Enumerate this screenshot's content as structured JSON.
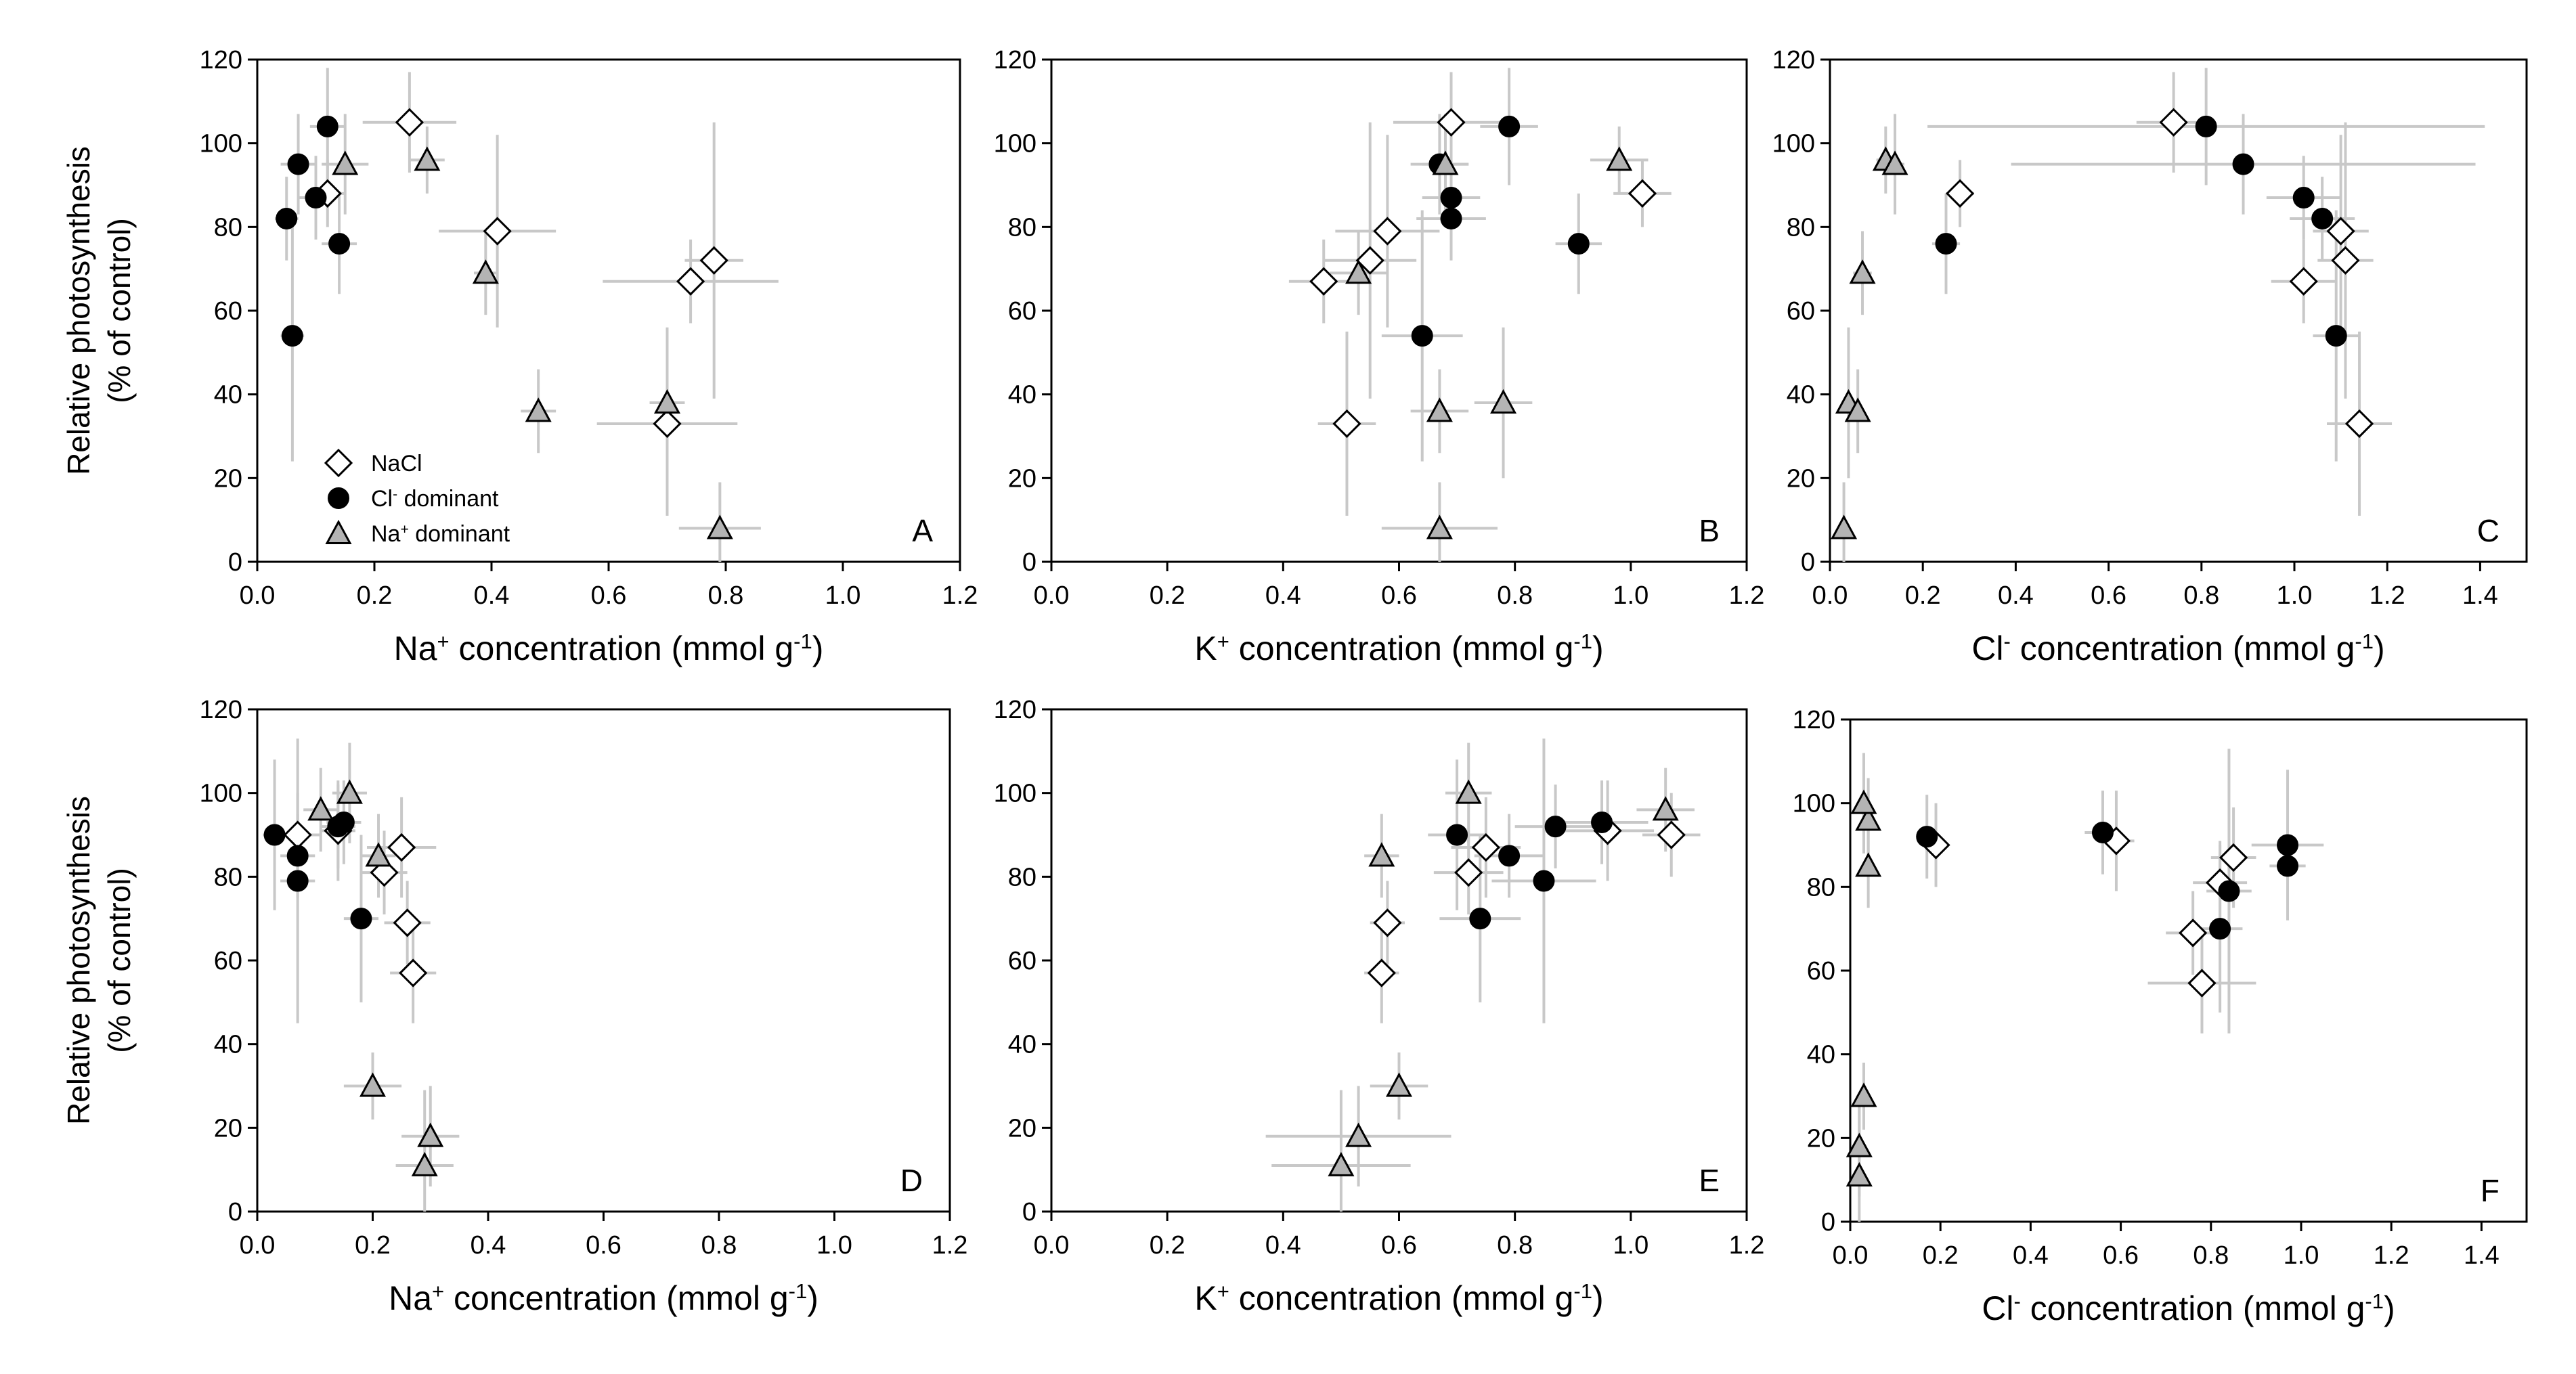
{
  "figure": {
    "ylabel_line1": "Relative photosynthesis",
    "ylabel_line2": "(% of control)",
    "legend": [
      {
        "name": "NaCl",
        "marker": "diamond",
        "fill": "#ffffff"
      },
      {
        "name": "Cl",
        "sup": "-",
        "suffix": " dominant",
        "marker": "circle",
        "fill": "#000000"
      },
      {
        "name": "Na",
        "sup": "+",
        "suffix": " dominant",
        "marker": "triangle",
        "fill": "#b4b4b4"
      }
    ],
    "errorbar_color": "#c8c8c8",
    "sets": {
      "NaCl": {
        "NaK": [
          {
            "x": 0.26,
            "y": 105,
            "ex": 0.08,
            "ey": 12,
            "k": 0.69,
            "ek": 0.1,
            "cl": 0.74,
            "ecl": 0.08
          },
          {
            "x": 0.12,
            "y": 88,
            "ex": 0.03,
            "ey": 8,
            "k": 1.02,
            "ek": 0.05,
            "cl": 0.28,
            "ecl": 0.03
          },
          {
            "x": 0.41,
            "y": 79,
            "ex": 0.1,
            "ey": 23,
            "k": 0.58,
            "ek": 0.09,
            "cl": 1.1,
            "ecl": 0.06
          },
          {
            "x": 0.78,
            "y": 72,
            "ex": 0.05,
            "ey": 33,
            "k": 0.55,
            "ek": 0.08,
            "cl": 1.11,
            "ecl": 0.06
          },
          {
            "x": 0.74,
            "y": 67,
            "ex": 0.15,
            "ey": 10,
            "k": 0.47,
            "ek": 0.06,
            "cl": 1.02,
            "ecl": 0.07
          },
          {
            "x": 0.7,
            "y": 33,
            "ex": 0.12,
            "ey": 22,
            "k": 0.51,
            "ek": 0.05,
            "cl": 1.14,
            "ecl": 0.07
          }
        ],
        "DEF": [
          {
            "x": 0.07,
            "y": 90,
            "ex": 0.04,
            "ey": 10,
            "k": 1.07,
            "ek": 0.05,
            "cl": 0.19,
            "ecl": 0.02
          },
          {
            "x": 0.14,
            "y": 91,
            "ex": 0.03,
            "ey": 12,
            "k": 0.96,
            "ek": 0.08,
            "cl": 0.59,
            "ecl": 0.04
          },
          {
            "x": 0.25,
            "y": 87,
            "ex": 0.06,
            "ey": 12,
            "k": 0.75,
            "ek": 0.06,
            "cl": 0.85,
            "ecl": 0.05
          },
          {
            "x": 0.22,
            "y": 81,
            "ex": 0.04,
            "ey": 10,
            "k": 0.72,
            "ek": 0.06,
            "cl": 0.82,
            "ecl": 0.06
          },
          {
            "x": 0.26,
            "y": 69,
            "ex": 0.04,
            "ey": 10,
            "k": 0.58,
            "ek": 0.03,
            "cl": 0.76,
            "ecl": 0.06
          },
          {
            "x": 0.27,
            "y": 57,
            "ex": 0.04,
            "ey": 12,
            "k": 0.57,
            "ek": 0.03,
            "cl": 0.78,
            "ecl": 0.12
          }
        ]
      },
      "Cl_dominant": {
        "NaK": [
          {
            "x": 0.12,
            "y": 104,
            "ex": 0.03,
            "ey": 14,
            "k": 0.79,
            "ek": 0.05,
            "cl": 0.81,
            "ecl": 0.6
          },
          {
            "x": 0.07,
            "y": 95,
            "ex": 0.03,
            "ey": 12,
            "k": 0.67,
            "ek": 0.05,
            "cl": 0.89,
            "ecl": 0.5
          },
          {
            "x": 0.1,
            "y": 87,
            "ex": 0.03,
            "ey": 10,
            "k": 0.69,
            "ek": 0.05,
            "cl": 1.02,
            "ecl": 0.08
          },
          {
            "x": 0.05,
            "y": 82,
            "ex": 0.02,
            "ey": 10,
            "k": 0.69,
            "ek": 0.06,
            "cl": 1.06,
            "ecl": 0.07
          },
          {
            "x": 0.14,
            "y": 76,
            "ex": 0.03,
            "ey": 12,
            "k": 0.91,
            "ek": 0.04,
            "cl": 0.25,
            "ecl": 0.03
          },
          {
            "x": 0.06,
            "y": 54,
            "ex": 0.02,
            "ey": 30,
            "k": 0.64,
            "ek": 0.07,
            "cl": 1.09,
            "ecl": 0.05
          }
        ],
        "DEF": [
          {
            "x": 0.03,
            "y": 90,
            "ex": 0.02,
            "ey": 18,
            "k": 0.7,
            "ek": 0.05,
            "cl": 0.97,
            "ecl": 0.08
          },
          {
            "x": 0.07,
            "y": 85,
            "ex": 0.03,
            "ey": 10,
            "k": 0.79,
            "ek": 0.06,
            "cl": 0.97,
            "ecl": 0.04
          },
          {
            "x": 0.07,
            "y": 79,
            "ex": 0.03,
            "ey": 34,
            "k": 0.85,
            "ek": 0.09,
            "cl": 0.84,
            "ecl": 0.05
          },
          {
            "x": 0.14,
            "y": 92,
            "ex": 0.03,
            "ey": 10,
            "k": 0.87,
            "ek": 0.07,
            "cl": 0.17,
            "ecl": 0.02
          },
          {
            "x": 0.15,
            "y": 93,
            "ex": 0.03,
            "ey": 10,
            "k": 0.95,
            "ek": 0.08,
            "cl": 0.56,
            "ecl": 0.04
          },
          {
            "x": 0.18,
            "y": 70,
            "ex": 0.03,
            "ey": 20,
            "k": 0.74,
            "ek": 0.07,
            "cl": 0.82,
            "ecl": 0.05
          }
        ]
      },
      "Na_dominant": {
        "NaK": [
          {
            "x": 0.29,
            "y": 96,
            "ex": 0.03,
            "ey": 8,
            "k": 0.98,
            "ek": 0.05,
            "cl": 0.12,
            "ecl": 0.02
          },
          {
            "x": 0.15,
            "y": 95,
            "ex": 0.04,
            "ey": 12,
            "k": 0.68,
            "ek": 0.04,
            "cl": 0.14,
            "ecl": 0.02
          },
          {
            "x": 0.39,
            "y": 69,
            "ex": 0.02,
            "ey": 10,
            "k": 0.53,
            "ek": 0.05,
            "cl": 0.07,
            "ecl": 0.02
          },
          {
            "x": 0.7,
            "y": 38,
            "ex": 0.03,
            "ey": 18,
            "k": 0.78,
            "ek": 0.05,
            "cl": 0.04,
            "ecl": 0.01
          },
          {
            "x": 0.48,
            "y": 36,
            "ex": 0.03,
            "ey": 10,
            "k": 0.67,
            "ek": 0.05,
            "cl": 0.06,
            "ecl": 0.01
          },
          {
            "x": 0.79,
            "y": 8,
            "ex": 0.07,
            "ey": 11,
            "k": 0.67,
            "ek": 0.1,
            "cl": 0.03,
            "ecl": 0.01
          }
        ],
        "DEF": [
          {
            "x": 0.11,
            "y": 96,
            "ex": 0.03,
            "ey": 10,
            "k": 1.06,
            "ek": 0.05,
            "cl": 0.04,
            "ecl": 0.01
          },
          {
            "x": 0.16,
            "y": 100,
            "ex": 0.03,
            "ey": 12,
            "k": 0.72,
            "ek": 0.04,
            "cl": 0.03,
            "ecl": 0.01
          },
          {
            "x": 0.21,
            "y": 85,
            "ex": 0.03,
            "ey": 10,
            "k": 0.57,
            "ek": 0.03,
            "cl": 0.04,
            "ecl": 0.01
          },
          {
            "x": 0.2,
            "y": 30,
            "ex": 0.05,
            "ey": 8,
            "k": 0.6,
            "ek": 0.05,
            "cl": 0.03,
            "ecl": 0.01
          },
          {
            "x": 0.3,
            "y": 18,
            "ex": 0.05,
            "ey": 12,
            "k": 0.53,
            "ek": 0.16,
            "cl": 0.02,
            "ecl": 0.01
          },
          {
            "x": 0.29,
            "y": 11,
            "ex": 0.05,
            "ey": 18,
            "k": 0.5,
            "ek": 0.12,
            "cl": 0.02,
            "ecl": 0.01
          }
        ]
      }
    }
  },
  "chart_data": [
    {
      "type": "scatter",
      "panel": "A",
      "xlabel_base": "Na",
      "xlabel_sup": "+",
      "xlabel_rest": " concentration (mmol g",
      "xlabel_exp": "-1",
      "xlabel_end": ")",
      "ylabel": "Relative photosynthesis (% of control)",
      "xlim": [
        0,
        1.2
      ],
      "ylim": [
        0,
        120
      ],
      "xticks": [
        "0.0",
        "0.2",
        "0.4",
        "0.6",
        "0.8",
        "1.0",
        "1.2"
      ],
      "yticks": [
        "0",
        "20",
        "40",
        "60",
        "80",
        "100",
        "120"
      ],
      "group": "NaK",
      "var": "x",
      "err": "ex",
      "show_legend": true
    },
    {
      "type": "scatter",
      "panel": "B",
      "xlabel_base": "K",
      "xlabel_sup": "+",
      "xlabel_rest": " concentration (mmol g",
      "xlabel_exp": "-1",
      "xlabel_end": ")",
      "ylabel": "",
      "xlim": [
        0,
        1.2
      ],
      "ylim": [
        0,
        120
      ],
      "xticks": [
        "0.0",
        "0.2",
        "0.4",
        "0.6",
        "0.8",
        "1.0",
        "1.2"
      ],
      "yticks": [
        "0",
        "20",
        "40",
        "60",
        "80",
        "100",
        "120"
      ],
      "group": "NaK",
      "var": "k",
      "err": "ek",
      "show_legend": false
    },
    {
      "type": "scatter",
      "panel": "C",
      "xlabel_base": "Cl",
      "xlabel_sup": "-",
      "xlabel_rest": " concentration (mmol g",
      "xlabel_exp": "-1",
      "xlabel_end": ")",
      "ylabel": "",
      "xlim": [
        0,
        1.5
      ],
      "ylim": [
        0,
        120
      ],
      "xticks": [
        "0.0",
        "0.2",
        "0.4",
        "0.6",
        "0.8",
        "1.0",
        "1.2",
        "1.4"
      ],
      "yticks": [
        "0",
        "20",
        "40",
        "60",
        "80",
        "100",
        "120"
      ],
      "group": "NaK",
      "var": "cl",
      "err": "ecl",
      "show_legend": false
    },
    {
      "type": "scatter",
      "panel": "D",
      "xlabel_base": "Na",
      "xlabel_sup": "+",
      "xlabel_rest": " concentration (mmol g",
      "xlabel_exp": "-1",
      "xlabel_end": ")",
      "ylabel": "Relative photosynthesis (% of control)",
      "xlim": [
        0,
        1.2
      ],
      "ylim": [
        0,
        120
      ],
      "xticks": [
        "0.0",
        "0.2",
        "0.4",
        "0.6",
        "0.8",
        "1.0",
        "1.2"
      ],
      "yticks": [
        "0",
        "20",
        "40",
        "60",
        "80",
        "100",
        "120"
      ],
      "group": "DEF",
      "var": "x",
      "err": "ex",
      "show_legend": false
    },
    {
      "type": "scatter",
      "panel": "E",
      "xlabel_base": "K",
      "xlabel_sup": "+",
      "xlabel_rest": " concentration (mmol g",
      "xlabel_exp": "-1",
      "xlabel_end": ")",
      "ylabel": "",
      "xlim": [
        0,
        1.2
      ],
      "ylim": [
        0,
        120
      ],
      "xticks": [
        "0.0",
        "0.2",
        "0.4",
        "0.6",
        "0.8",
        "1.0",
        "1.2"
      ],
      "yticks": [
        "0",
        "20",
        "40",
        "60",
        "80",
        "100",
        "120"
      ],
      "group": "DEF",
      "var": "k",
      "err": "ek",
      "show_legend": false
    },
    {
      "type": "scatter",
      "panel": "F",
      "xlabel_base": "Cl",
      "xlabel_sup": "-",
      "xlabel_rest": " concentration (mmol g",
      "xlabel_exp": "-1",
      "xlabel_end": ")",
      "ylabel": "",
      "xlim": [
        0,
        1.5
      ],
      "ylim": [
        0,
        120
      ],
      "xticks": [
        "0.0",
        "0.2",
        "0.4",
        "0.6",
        "0.8",
        "1.0",
        "1.2",
        "1.4"
      ],
      "yticks": [
        "0",
        "20",
        "40",
        "60",
        "80",
        "100",
        "120"
      ],
      "group": "DEF",
      "var": "cl",
      "err": "ecl",
      "show_legend": false
    }
  ]
}
